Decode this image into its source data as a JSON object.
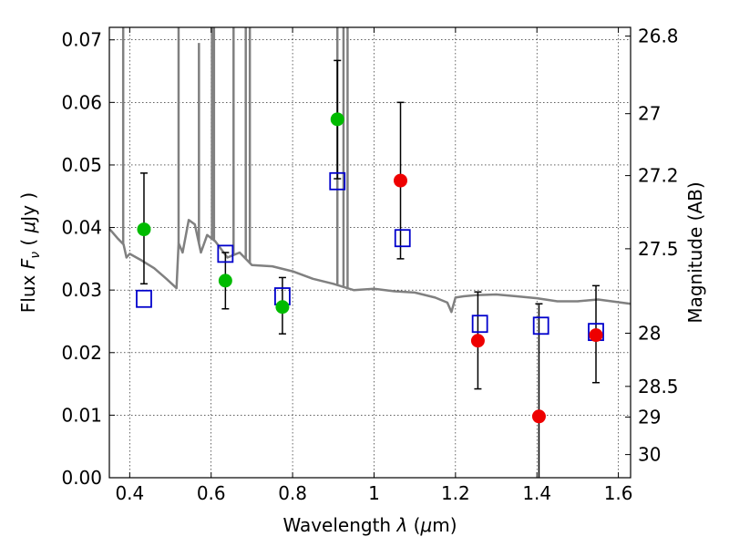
{
  "chart_data": {
    "type": "scatter",
    "title": "",
    "xlabel": "Wavelength  λ (μm)",
    "ylabel": "Flux  F_ν  ( μJy )",
    "ylabel_right": "Magnitude (AB)",
    "xlim": [
      0.35,
      1.63
    ],
    "ylim": [
      0.0,
      0.072
    ],
    "grid": true,
    "x_ticks": [
      0.4,
      0.6,
      0.8,
      1.0,
      1.2,
      1.4,
      1.6
    ],
    "x_tick_labels": [
      "0.4",
      "0.6",
      "0.8",
      "1",
      "1.2",
      "1.4",
      "1.6"
    ],
    "y_ticks": [
      0.0,
      0.01,
      0.02,
      0.03,
      0.04,
      0.05,
      0.06,
      0.07
    ],
    "y_tick_labels": [
      "0.00",
      "0.01",
      "0.02",
      "0.03",
      "0.04",
      "0.05",
      "0.06",
      "0.07"
    ],
    "right_ticks": [
      {
        "label": "26.8",
        "flux": 0.0706
      },
      {
        "label": "27",
        "flux": 0.0582
      },
      {
        "label": "27.2",
        "flux": 0.0483
      },
      {
        "label": "27.5",
        "flux": 0.0366
      },
      {
        "label": "28",
        "flux": 0.0231
      },
      {
        "label": "28.5",
        "flux": 0.0146
      },
      {
        "label": "29",
        "flux": 0.0097
      },
      {
        "label": "30",
        "flux": 0.0037
      }
    ],
    "colors": {
      "green": "#00bb00",
      "red": "#ee0000",
      "blue": "#0000cc",
      "spectrum": "#808080",
      "errorbar": "#000000"
    },
    "series": [
      {
        "marker": "green-circle",
        "points": [
          {
            "x": 0.435,
            "y": 0.0397,
            "err_lo": 0.031,
            "err_hi": 0.0487
          },
          {
            "x": 0.635,
            "y": 0.0315,
            "err_lo": 0.027,
            "err_hi": 0.036
          },
          {
            "x": 0.775,
            "y": 0.0273,
            "err_lo": 0.023,
            "err_hi": 0.032
          },
          {
            "x": 0.91,
            "y": 0.0573,
            "err_lo": 0.0478,
            "err_hi": 0.0667
          }
        ]
      },
      {
        "marker": "red-circle",
        "points": [
          {
            "x": 1.065,
            "y": 0.0475,
            "err_lo": 0.035,
            "err_hi": 0.06
          },
          {
            "x": 1.255,
            "y": 0.0219,
            "err_lo": 0.0142,
            "err_hi": 0.0297
          },
          {
            "x": 1.405,
            "y": 0.0098,
            "err_lo": 0.0,
            "err_hi": 0.0278
          },
          {
            "x": 1.545,
            "y": 0.0228,
            "err_lo": 0.0152,
            "err_hi": 0.0307
          }
        ]
      },
      {
        "marker": "blue-open-square",
        "points": [
          {
            "x": 0.435,
            "y": 0.0286
          },
          {
            "x": 0.635,
            "y": 0.0358
          },
          {
            "x": 0.775,
            "y": 0.029
          },
          {
            "x": 0.91,
            "y": 0.0474
          },
          {
            "x": 1.07,
            "y": 0.0383
          },
          {
            "x": 1.26,
            "y": 0.0246
          },
          {
            "x": 1.41,
            "y": 0.0243
          },
          {
            "x": 1.545,
            "y": 0.0233
          }
        ]
      },
      {
        "type": "line",
        "marker": "spectrum",
        "x": [
          0.35,
          0.37,
          0.385,
          0.392,
          0.4,
          0.43,
          0.46,
          0.49,
          0.515,
          0.52,
          0.53,
          0.545,
          0.56,
          0.575,
          0.59,
          0.61,
          0.64,
          0.67,
          0.7,
          0.75,
          0.8,
          0.85,
          0.9,
          0.95,
          1.0,
          1.05,
          1.1,
          1.15,
          1.18,
          1.19,
          1.2,
          1.22,
          1.25,
          1.3,
          1.35,
          1.4,
          1.45,
          1.5,
          1.55,
          1.63
        ],
        "y": [
          0.0398,
          0.0383,
          0.0373,
          0.0352,
          0.0358,
          0.0347,
          0.0335,
          0.0318,
          0.0303,
          0.0375,
          0.036,
          0.0412,
          0.0405,
          0.036,
          0.0388,
          0.0378,
          0.0352,
          0.036,
          0.034,
          0.0338,
          0.033,
          0.0318,
          0.031,
          0.03,
          0.0302,
          0.0298,
          0.0296,
          0.0288,
          0.028,
          0.0265,
          0.0288,
          0.029,
          0.0292,
          0.0293,
          0.029,
          0.0287,
          0.0282,
          0.0282,
          0.0285,
          0.0278
        ]
      },
      {
        "type": "spikes",
        "marker": "spectrum",
        "lines": [
          {
            "x": 0.384,
            "top": 0.072
          },
          {
            "x": 0.52,
            "top": 0.072
          },
          {
            "x": 0.602,
            "top": 0.072
          },
          {
            "x": 0.607,
            "top": 0.072
          },
          {
            "x": 0.57,
            "top": 0.0695
          },
          {
            "x": 0.655,
            "top": 0.072
          },
          {
            "x": 0.685,
            "top": 0.072
          },
          {
            "x": 0.695,
            "top": 0.072
          },
          {
            "x": 0.91,
            "top": 0.072
          },
          {
            "x": 0.925,
            "top": 0.072
          },
          {
            "x": 0.935,
            "top": 0.072
          }
        ]
      }
    ]
  }
}
